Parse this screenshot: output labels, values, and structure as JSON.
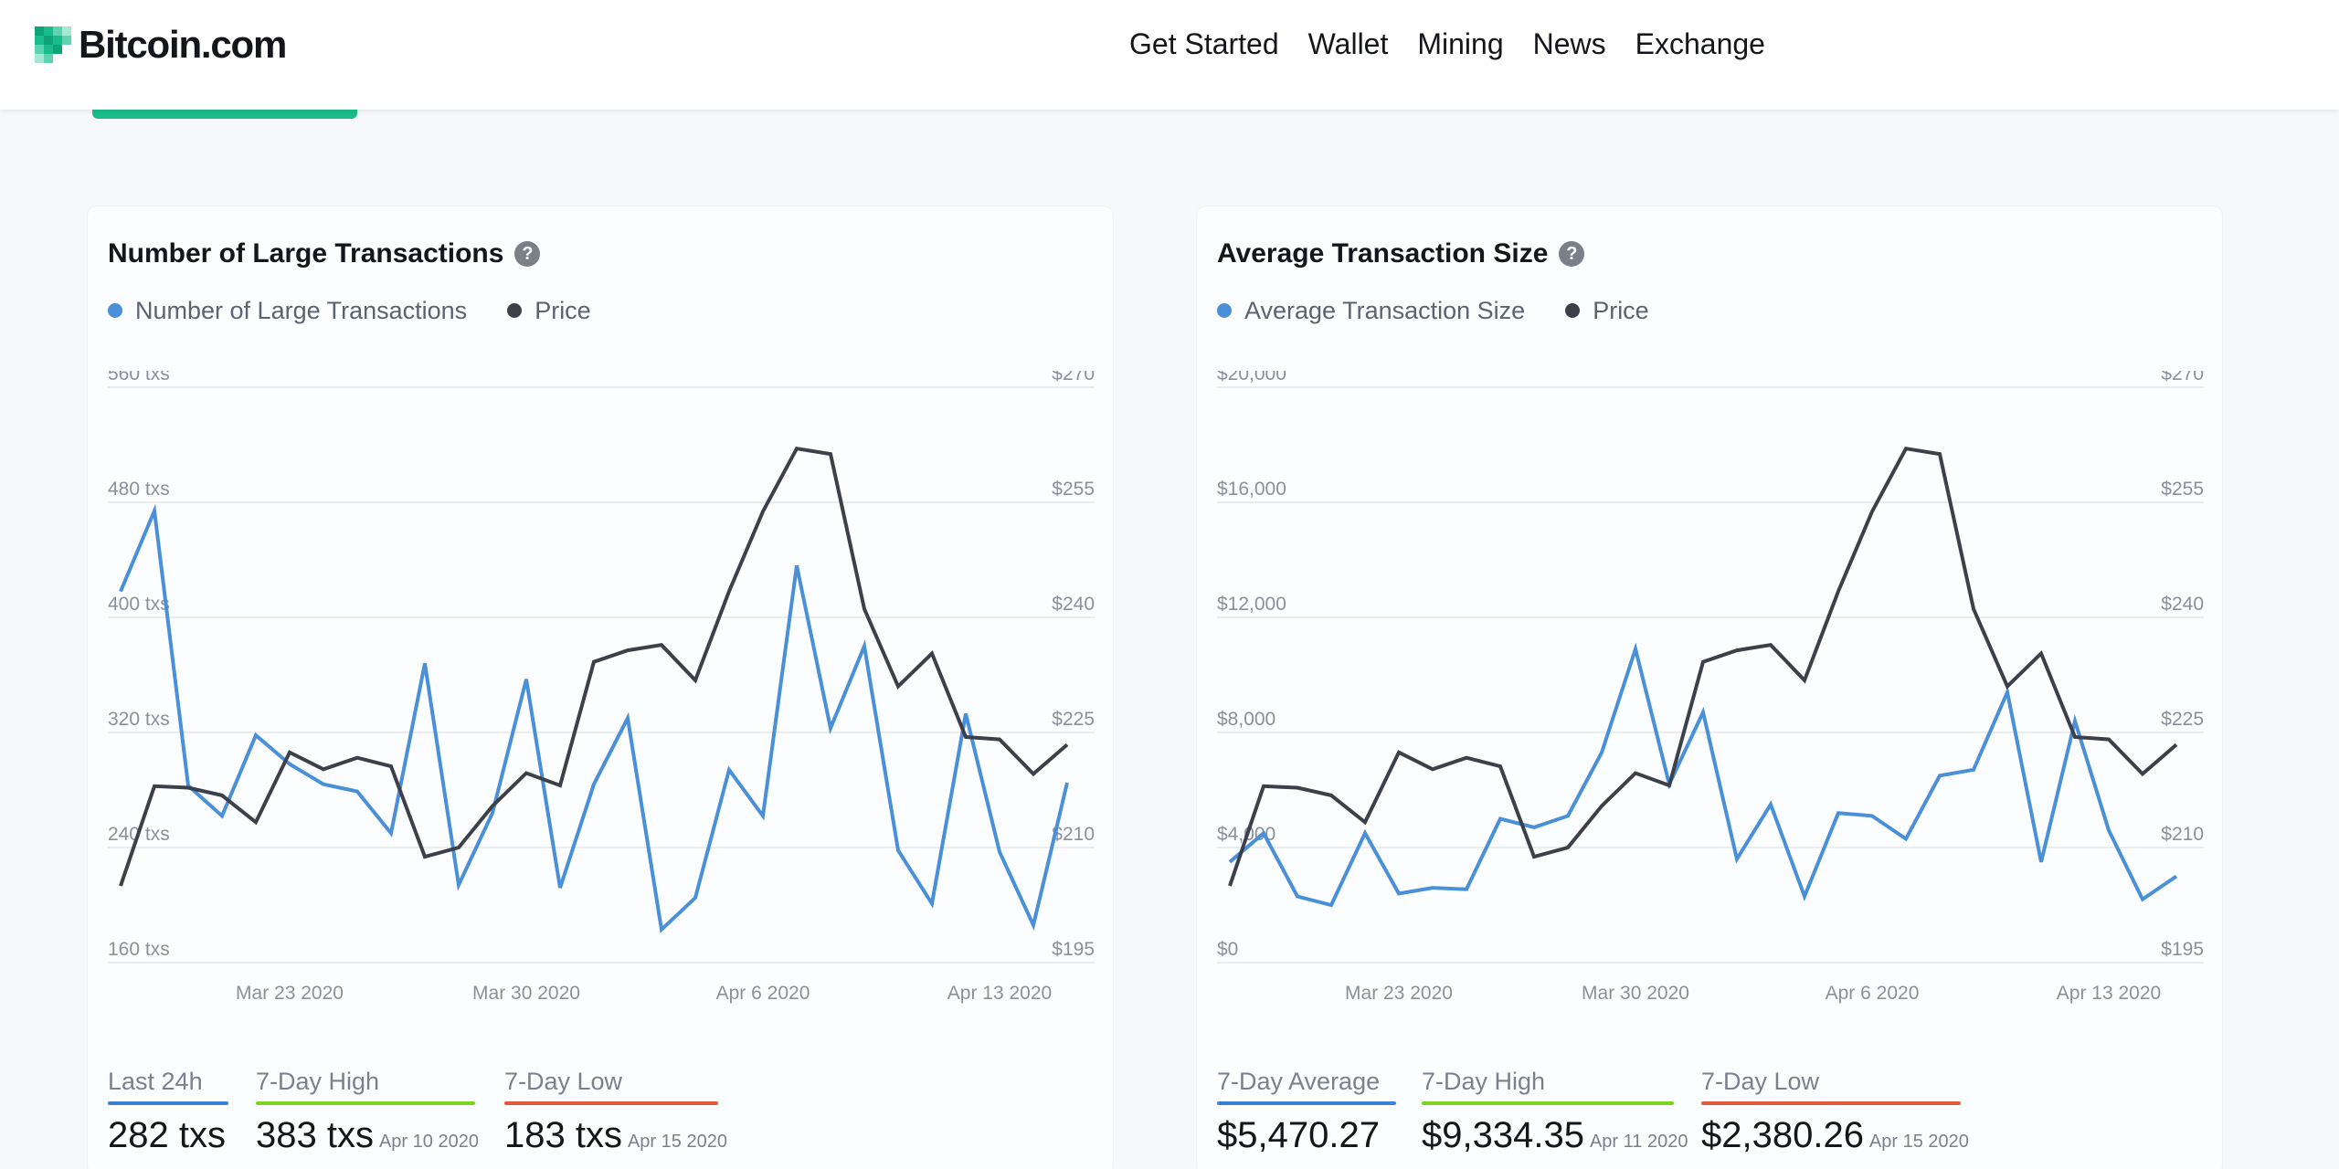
{
  "header": {
    "logo_text": "Bitcoin.com",
    "nav": [
      "Get Started",
      "Wallet",
      "Mining",
      "News",
      "Exchange"
    ]
  },
  "colors": {
    "transactions": "#4a90d9",
    "price": "#3d4048",
    "blue": "#3b82d6",
    "green": "#7ed321",
    "red": "#e05a3a"
  },
  "left": {
    "title": "Number of Large Transactions",
    "legend_series": "Number of Large Transactions",
    "legend_price": "Price",
    "stats": [
      {
        "label": "Last 24h",
        "value": "282 txs",
        "date": ""
      },
      {
        "label": "7-Day High",
        "value": "383 txs",
        "date": "Apr 10 2020"
      },
      {
        "label": "7-Day Low",
        "value": "183 txs",
        "date": "Apr 15 2020"
      }
    ]
  },
  "right": {
    "title": "Average Transaction Size",
    "legend_series": "Average Transaction Size",
    "legend_price": "Price",
    "stats": [
      {
        "label": "7-Day Average",
        "value": "$5,470.27",
        "date": ""
      },
      {
        "label": "7-Day High",
        "value": "$9,334.35",
        "date": "Apr 11 2020"
      },
      {
        "label": "7-Day Low",
        "value": "$2,380.26",
        "date": "Apr 15 2020"
      }
    ]
  },
  "chart_data": [
    {
      "type": "line",
      "title": "Number of Large Transactions",
      "x": [
        "Mar 18 2020",
        "Mar 19 2020",
        "Mar 20 2020",
        "Mar 21 2020",
        "Mar 22 2020",
        "Mar 23 2020",
        "Mar 24 2020",
        "Mar 25 2020",
        "Mar 26 2020",
        "Mar 27 2020",
        "Mar 28 2020",
        "Mar 29 2020",
        "Mar 30 2020",
        "Mar 31 2020",
        "Apr 1 2020",
        "Apr 2 2020",
        "Apr 3 2020",
        "Apr 4 2020",
        "Apr 5 2020",
        "Apr 6 2020",
        "Apr 7 2020",
        "Apr 8 2020",
        "Apr 9 2020",
        "Apr 10 2020",
        "Apr 11 2020",
        "Apr 12 2020",
        "Apr 13 2020",
        "Apr 14 2020",
        "Apr 15 2020",
        "Apr 16 2020"
      ],
      "x_ticks": [
        "Mar 23 2020",
        "Mar 30 2020",
        "Apr 6 2020",
        "Apr 13 2020"
      ],
      "left_axis": {
        "ticks": [
          "560 txs",
          "480 txs",
          "400 txs",
          "320 txs",
          "240 txs",
          "160 txs"
        ],
        "range": [
          160,
          560
        ]
      },
      "right_axis": {
        "ticks": [
          "$270",
          "$255",
          "$240",
          "$225",
          "$210",
          "$195"
        ],
        "range": [
          195,
          270
        ]
      },
      "series": [
        {
          "name": "Number of Large Transactions",
          "axis": "left",
          "values": [
            418,
            474,
            283,
            262,
            318,
            298,
            284,
            279,
            250,
            368,
            214,
            264,
            357,
            212,
            284,
            330,
            183,
            205,
            294,
            262,
            436,
            323,
            380,
            238,
            201,
            333,
            237,
            186,
            285,
            null
          ]
        },
        {
          "name": "Price",
          "axis": "right",
          "values": [
            205,
            218,
            217.8,
            216.8,
            213.3,
            222.4,
            220.2,
            221.7,
            220.6,
            208.8,
            210,
            215.4,
            219.7,
            218.1,
            234.2,
            235.7,
            236.4,
            231.8,
            243.4,
            253.8,
            262,
            261.3,
            241.1,
            231,
            235.3,
            224.4,
            224.1,
            219.6,
            223.4,
            null
          ]
        }
      ],
      "grid": true,
      "legend": "top-left"
    },
    {
      "type": "line",
      "title": "Average Transaction Size",
      "x": [
        "Mar 18 2020",
        "Mar 19 2020",
        "Mar 20 2020",
        "Mar 21 2020",
        "Mar 22 2020",
        "Mar 23 2020",
        "Mar 24 2020",
        "Mar 25 2020",
        "Mar 26 2020",
        "Mar 27 2020",
        "Mar 28 2020",
        "Mar 29 2020",
        "Mar 30 2020",
        "Mar 31 2020",
        "Apr 1 2020",
        "Apr 2 2020",
        "Apr 3 2020",
        "Apr 4 2020",
        "Apr 5 2020",
        "Apr 6 2020",
        "Apr 7 2020",
        "Apr 8 2020",
        "Apr 9 2020",
        "Apr 10 2020",
        "Apr 11 2020",
        "Apr 12 2020",
        "Apr 13 2020",
        "Apr 14 2020",
        "Apr 15 2020",
        "Apr 16 2020"
      ],
      "x_ticks": [
        "Mar 23 2020",
        "Mar 30 2020",
        "Apr 6 2020",
        "Apr 13 2020"
      ],
      "left_axis": {
        "ticks": [
          "$20,000",
          "$16,000",
          "$12,000",
          "$8,000",
          "$4,000",
          "$0"
        ],
        "range": [
          0,
          20000
        ]
      },
      "right_axis": {
        "ticks": [
          "$270",
          "$255",
          "$240",
          "$225",
          "$210",
          "$195"
        ],
        "range": [
          195,
          270
        ]
      },
      "series": [
        {
          "name": "Average Transaction Size",
          "axis": "left",
          "values": [
            3500,
            4500,
            2300,
            2000,
            4500,
            2400,
            2600,
            2550,
            5000,
            4700,
            5100,
            7300,
            10900,
            6200,
            8700,
            3600,
            5500,
            2300,
            5200,
            5100,
            4300,
            6500,
            6700,
            9400,
            3500,
            8400,
            4600,
            2200,
            3000,
            null
          ]
        },
        {
          "name": "Price",
          "axis": "right",
          "values": [
            205,
            218,
            217.8,
            216.8,
            213.3,
            222.4,
            220.2,
            221.7,
            220.6,
            208.8,
            210,
            215.4,
            219.7,
            218.1,
            234.2,
            235.7,
            236.4,
            231.8,
            243.4,
            253.8,
            262,
            261.3,
            241.1,
            231,
            235.3,
            224.4,
            224.1,
            219.6,
            223.4,
            null
          ]
        }
      ],
      "grid": true,
      "legend": "top-left"
    }
  ]
}
